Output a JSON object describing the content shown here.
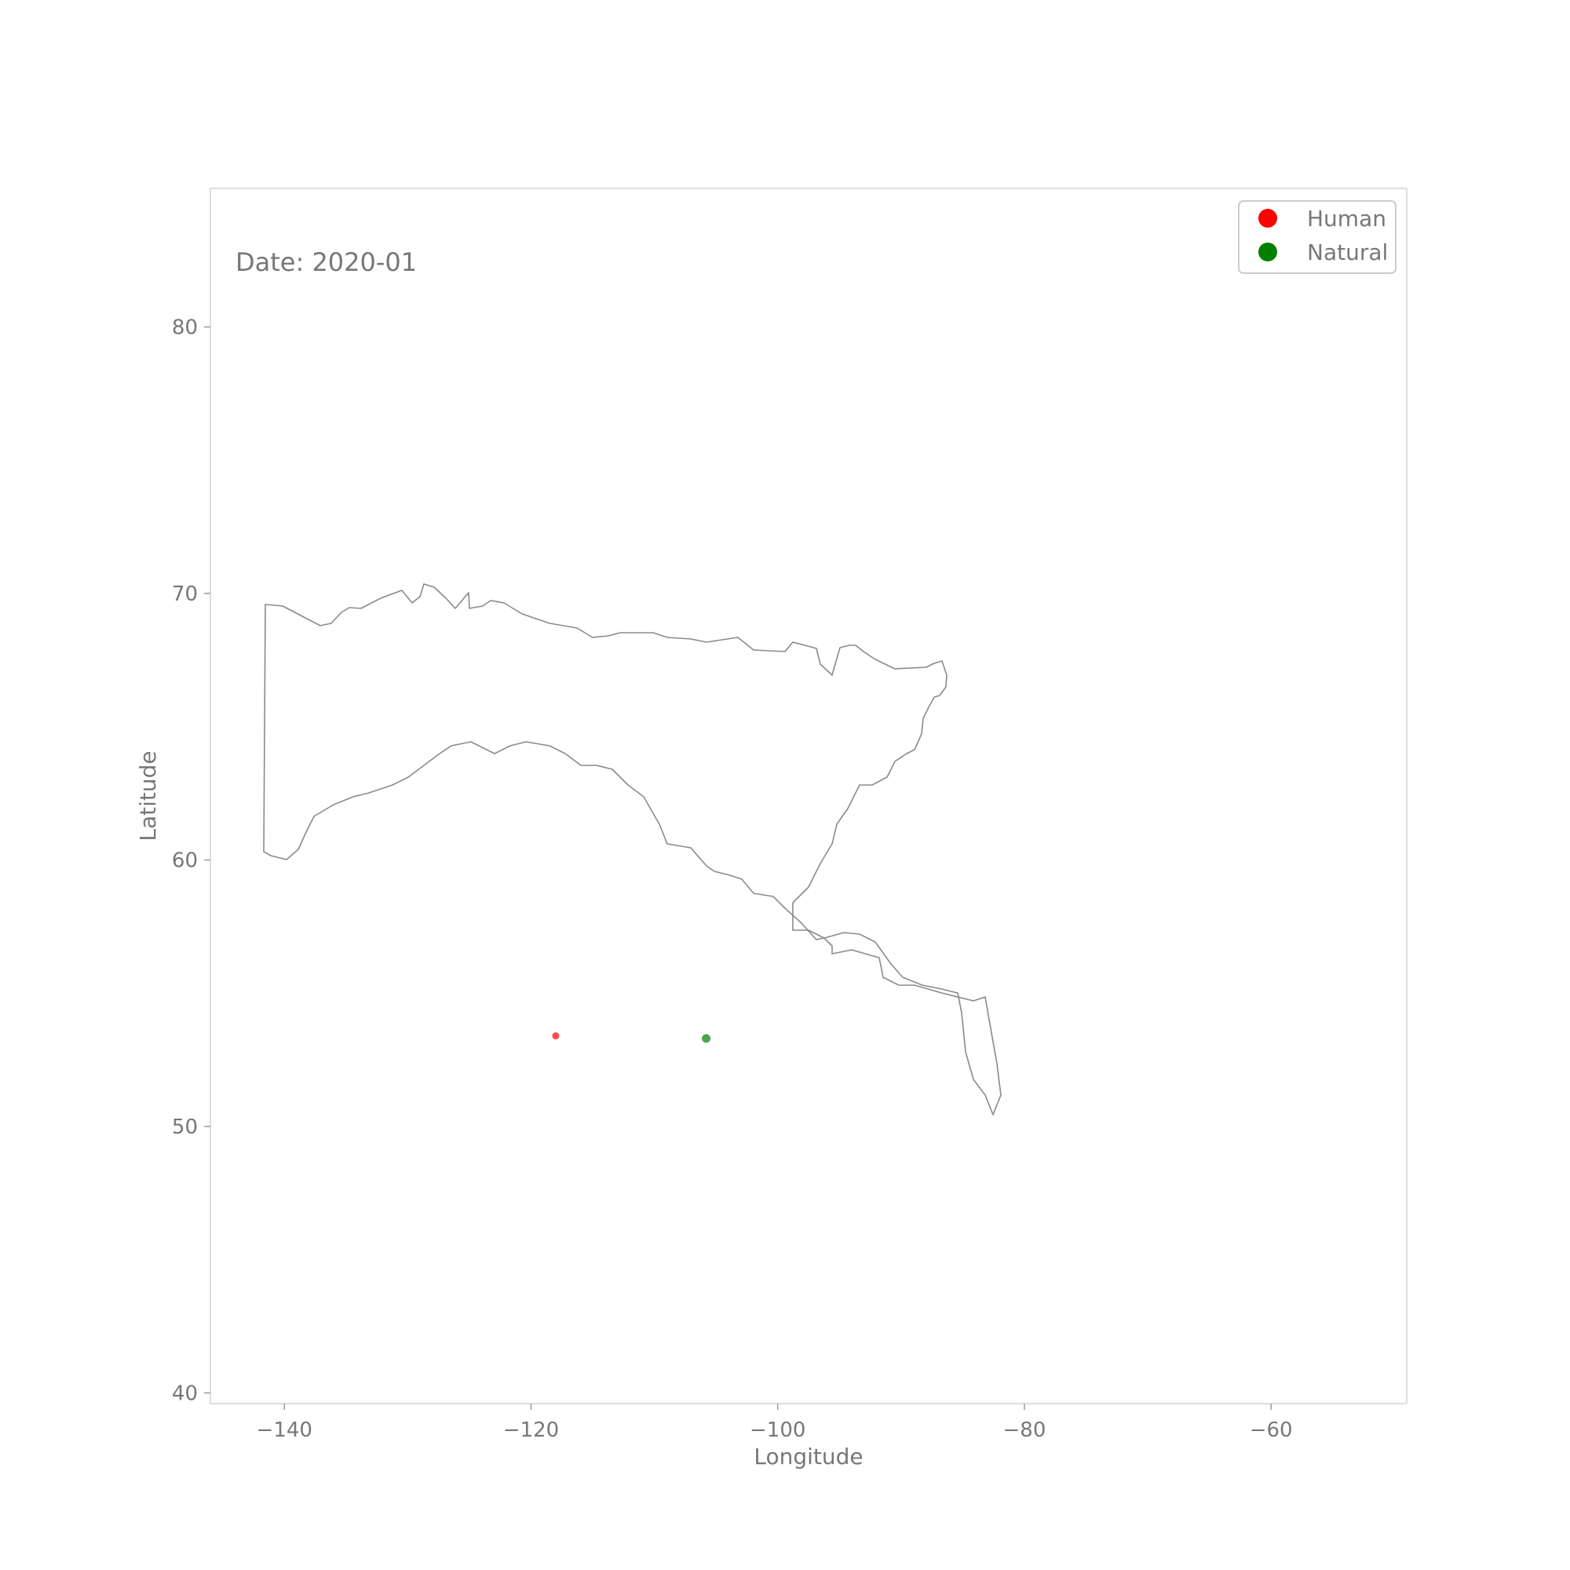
{
  "chart_data": {
    "type": "scatter",
    "title": "",
    "annotation": "Date: 2020-01",
    "xlabel": "Longitude",
    "ylabel": "Latitude",
    "xlim": [
      -146,
      -49
    ],
    "ylim": [
      39.6,
      85.2
    ],
    "xticks": [
      -140,
      -120,
      -100,
      -80,
      -60
    ],
    "yticks": [
      40,
      50,
      60,
      70,
      80
    ],
    "grid": false,
    "legend_position": "top-right",
    "base_map": "Canada outline",
    "series": [
      {
        "name": "Human",
        "color": "#ff0000",
        "points": [
          {
            "lon": -118.0,
            "lat": 53.4
          }
        ]
      },
      {
        "name": "Natural",
        "color": "#008000",
        "points": [
          {
            "lon": -105.8,
            "lat": 53.3
          }
        ]
      }
    ]
  }
}
